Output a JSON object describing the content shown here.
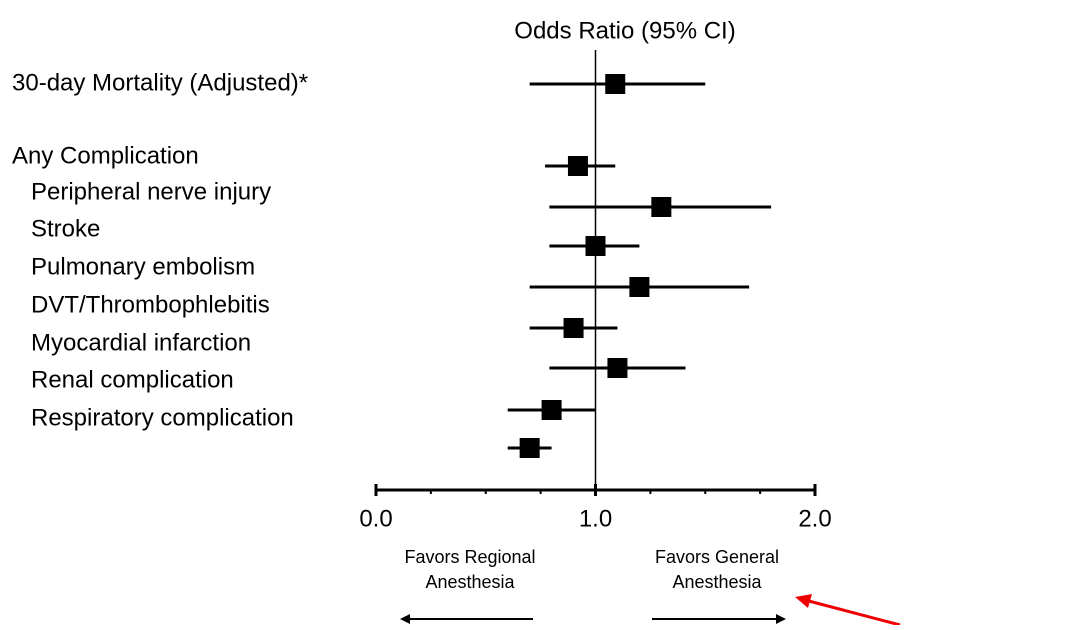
{
  "chart_data": {
    "type": "forest",
    "title": "Odds Ratio (95% CI)",
    "categories": [
      "30-day Mortality (Adjusted)*",
      "Any Complication",
      "Peripheral nerve injury",
      "Stroke",
      "Pulmonary embolism",
      "DVT/Thrombophlebitis",
      "Myocardial infarction",
      "Renal complication",
      "Respiratory complication"
    ],
    "values": [
      1.09,
      0.92,
      1.3,
      1.0,
      1.2,
      0.9,
      1.1,
      0.8,
      0.7
    ],
    "lower": [
      0.7,
      0.77,
      0.79,
      0.79,
      0.7,
      0.7,
      0.79,
      0.6,
      0.6
    ],
    "upper": [
      1.5,
      1.09,
      1.8,
      1.2,
      1.7,
      1.1,
      1.41,
      1.0,
      0.8
    ],
    "color": "#000000",
    "xlim": [
      0,
      2
    ],
    "xticks": [
      {
        "value": 0,
        "label": "0.0"
      },
      {
        "value": 1,
        "label": "1.0"
      },
      {
        "value": 2,
        "label": "2.0"
      }
    ],
    "minor_xticks": [
      0.25,
      0.5,
      0.75,
      1.25,
      1.5,
      1.75
    ],
    "reference_line": 1,
    "annotations": [
      {
        "lines": [
          "Favors Regional",
          "Anesthesia"
        ]
      },
      {
        "lines": [
          "Favors General",
          "Anesthesia"
        ]
      }
    ]
  }
}
